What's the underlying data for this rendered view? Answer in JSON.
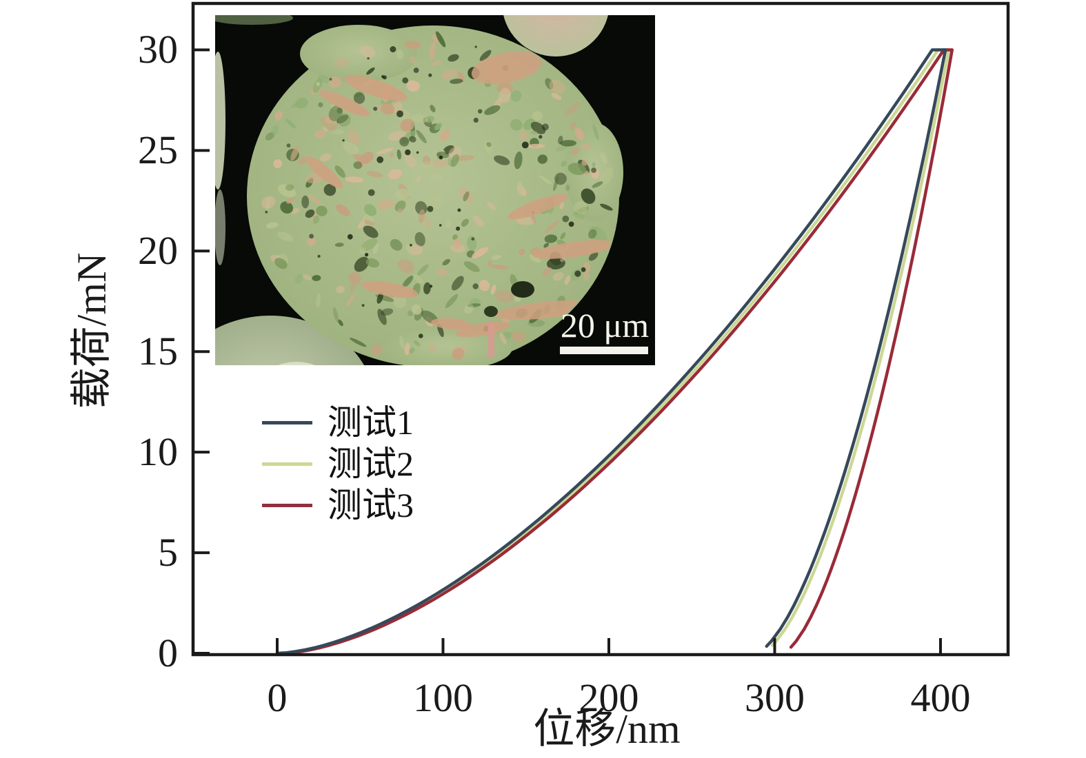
{
  "figure": {
    "background": "#ffffff",
    "axis_color": "#1a1a1a"
  },
  "chart_data": {
    "type": "line",
    "title": "",
    "xlabel": "位移/nm",
    "ylabel": "载荷/mN",
    "x_ticks": [
      0,
      100,
      200,
      300,
      400
    ],
    "y_ticks": [
      0,
      5,
      10,
      15,
      20,
      25,
      30
    ],
    "xlim": [
      -51,
      441
    ],
    "ylim": [
      0,
      32.3
    ],
    "grid": false,
    "legend_position": "middle-left",
    "hold_segment_nm": 8,
    "series": [
      {
        "name": "测试1",
        "color": "#36495a",
        "peak_load_mN": 30,
        "max_depth_nm": 403,
        "residual_depth_nm": 288,
        "loading_exponent": 1.64,
        "unloading_exponent": 1.6,
        "loading_offset_nm": 0,
        "end_load_mN": 0.35,
        "loading_points_nm_mN": [
          [
            0,
            0
          ],
          [
            99,
            3
          ],
          [
            151,
            6
          ],
          [
            194,
            9
          ],
          [
            231,
            12
          ],
          [
            264,
            15
          ],
          [
            295,
            18
          ],
          [
            324,
            21
          ],
          [
            352,
            24
          ],
          [
            378,
            27
          ],
          [
            403,
            30
          ]
        ],
        "unloading_points_nm_mN": [
          [
            403,
            30
          ],
          [
            388,
            24
          ],
          [
            372,
            18
          ],
          [
            353,
            12
          ],
          [
            330,
            6
          ],
          [
            315,
            3
          ],
          [
            302,
            1
          ],
          [
            288,
            0
          ]
        ]
      },
      {
        "name": "测试2",
        "color": "#ccd794",
        "peak_load_mN": 30,
        "max_depth_nm": 405,
        "residual_depth_nm": 291,
        "loading_exponent": 1.64,
        "unloading_exponent": 1.6,
        "loading_offset_nm": 1.5,
        "end_load_mN": 0.4,
        "loading_points_nm_mN": [
          [
            0,
            0
          ],
          [
            99,
            3
          ],
          [
            152,
            6
          ],
          [
            194,
            9
          ],
          [
            231,
            12
          ],
          [
            265,
            15
          ],
          [
            296,
            18
          ],
          [
            325,
            21
          ],
          [
            353,
            24
          ],
          [
            379,
            27
          ],
          [
            405,
            30
          ]
        ],
        "unloading_points_nm_mN": [
          [
            405,
            30
          ],
          [
            390,
            24
          ],
          [
            374,
            18
          ],
          [
            355,
            12
          ],
          [
            333,
            6
          ],
          [
            318,
            3
          ],
          [
            305,
            1
          ],
          [
            291,
            0
          ]
        ]
      },
      {
        "name": "测试3",
        "color": "#992b38",
        "peak_load_mN": 30,
        "max_depth_nm": 407,
        "residual_depth_nm": 304,
        "loading_exponent": 1.64,
        "unloading_exponent": 1.6,
        "loading_offset_nm": 3,
        "end_load_mN": 0.3,
        "loading_points_nm_mN": [
          [
            0,
            0
          ],
          [
            100,
            3
          ],
          [
            152,
            6
          ],
          [
            195,
            9
          ],
          [
            232,
            12
          ],
          [
            266,
            15
          ],
          [
            297,
            18
          ],
          [
            326,
            21
          ],
          [
            354,
            24
          ],
          [
            381,
            27
          ],
          [
            407,
            30
          ]
        ],
        "unloading_points_nm_mN": [
          [
            407,
            30
          ],
          [
            394,
            24
          ],
          [
            379,
            18
          ],
          [
            362,
            12
          ],
          [
            342,
            6
          ],
          [
            328,
            3
          ],
          [
            316,
            1
          ],
          [
            304,
            0
          ]
        ]
      }
    ]
  },
  "legend": {
    "entries": [
      "测试1",
      "测试2",
      "测试3"
    ],
    "swatch_colors": [
      "#36495a",
      "#ccd794",
      "#8f3140"
    ]
  },
  "inset": {
    "scale_bar_label": "20 μm",
    "background_color": "#070a06",
    "particle_base_color": "#a6b687",
    "particle_speckle_colors": [
      "#7d9a5e",
      "#c7a07e",
      "#8fae72",
      "#d2ab8a",
      "#4c6a38",
      "#2e401f",
      "#b9c490",
      "#dcb99a"
    ]
  }
}
